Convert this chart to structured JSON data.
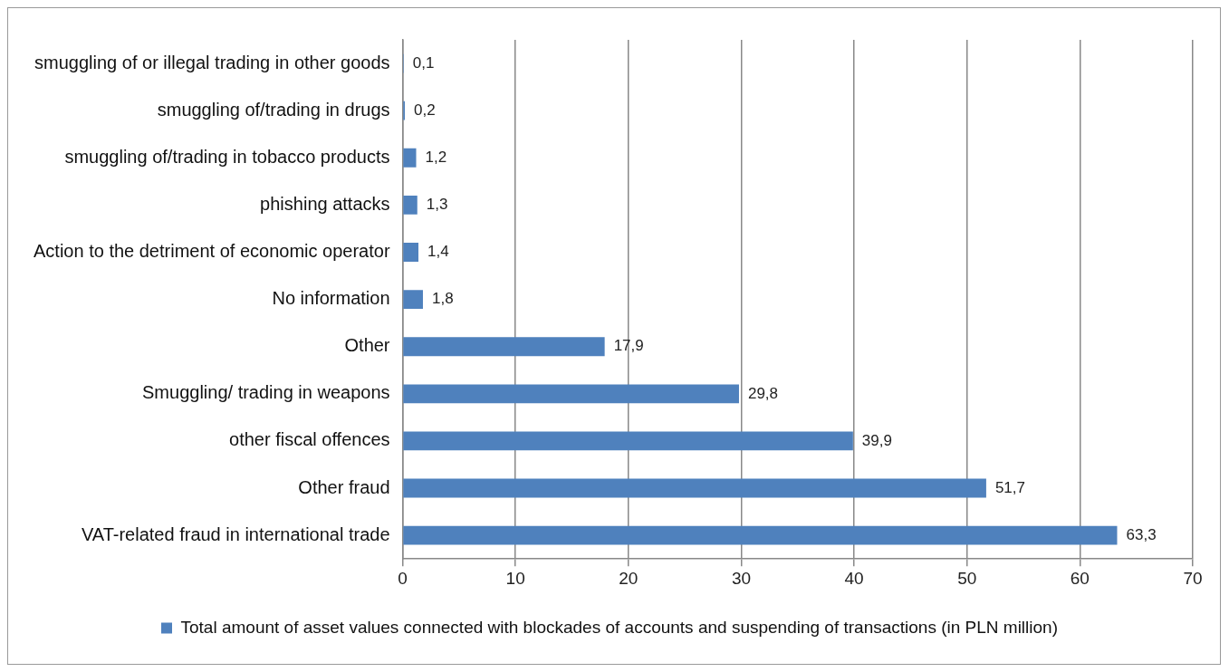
{
  "chart_data": {
    "type": "bar",
    "orientation": "horizontal",
    "categories": [
      "smuggling of or illegal trading in other goods",
      "smuggling of/trading in drugs",
      "smuggling of/trading in tobacco products",
      "phishing attacks",
      "Action to the detriment of economic operator",
      "No information",
      "Other",
      "Smuggling/ trading in weapons",
      "other fiscal offences",
      "Other fraud",
      "VAT-related fraud in international trade"
    ],
    "series": [
      {
        "name": "Total amount of asset values connected with blockades of accounts and suspending of transactions (in PLN million)",
        "color": "#4f81bd",
        "values": [
          0.1,
          0.2,
          1.2,
          1.3,
          1.4,
          1.8,
          17.9,
          29.8,
          39.9,
          51.7,
          63.3
        ],
        "value_labels": [
          "0,1",
          "0,2",
          "1,2",
          "1,3",
          "1,4",
          "1,8",
          "17,9",
          "29,8",
          "39,9",
          "51,7",
          "63,3"
        ]
      }
    ],
    "xlim": [
      0,
      70
    ],
    "xticks": [
      0,
      10,
      20,
      30,
      40,
      50,
      60,
      70
    ],
    "grid": "x",
    "legend": "bottom"
  }
}
